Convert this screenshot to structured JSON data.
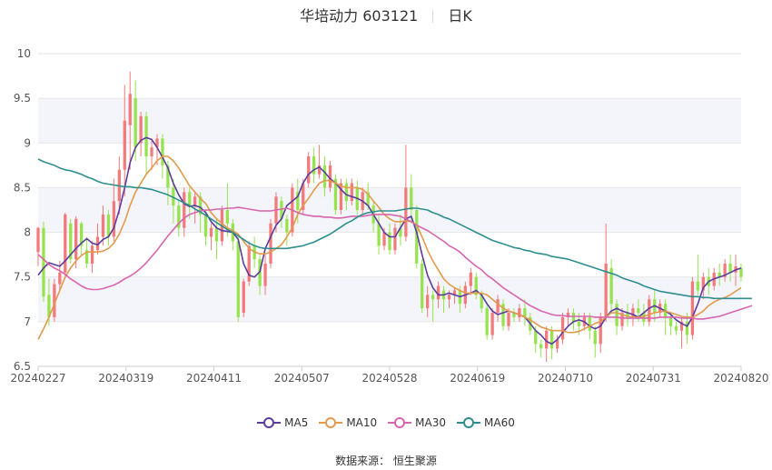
{
  "title": {
    "stock": "华培动力 603121",
    "period": "日K"
  },
  "source": "数据来源： 恒生聚源",
  "chart_data": {
    "type": "candlestick",
    "ylim": [
      6.5,
      10
    ],
    "yticks": [
      "6.5",
      "7",
      "7.5",
      "8",
      "8.5",
      "9",
      "9.5",
      "10"
    ],
    "xticks": [
      "20240227",
      "20240319",
      "20240411",
      "20240507",
      "20240528",
      "20240619",
      "20240710",
      "20240731",
      "20240820"
    ],
    "colors": {
      "up": "#f27a7a",
      "down": "#96e34e"
    },
    "legend": [
      {
        "name": "MA5",
        "color": "#5b3d9b"
      },
      {
        "name": "MA10",
        "color": "#e29a4d"
      },
      {
        "name": "MA30",
        "color": "#d865ad"
      },
      {
        "name": "MA60",
        "color": "#2f8e8e"
      }
    ],
    "candles": [
      [
        7.78,
        8.05,
        8.06,
        7.62
      ],
      [
        8.05,
        7.28,
        8.12,
        7.22
      ],
      [
        7.3,
        7.05,
        7.48,
        6.95
      ],
      [
        7.05,
        7.42,
        7.48,
        7.0
      ],
      [
        7.42,
        7.55,
        7.68,
        7.35
      ],
      [
        7.55,
        8.2,
        8.22,
        7.5
      ],
      [
        8.1,
        7.7,
        8.15,
        7.65
      ],
      [
        7.7,
        8.15,
        8.18,
        7.6
      ],
      [
        8.1,
        7.85,
        8.12,
        7.75
      ],
      [
        7.8,
        7.65,
        7.95,
        7.6
      ],
      [
        7.65,
        7.85,
        7.9,
        7.55
      ],
      [
        7.8,
        7.95,
        8.1,
        7.75
      ],
      [
        7.95,
        8.2,
        8.3,
        7.85
      ],
      [
        8.2,
        7.95,
        8.25,
        7.85
      ],
      [
        7.95,
        8.35,
        8.6,
        7.9
      ],
      [
        8.35,
        8.7,
        8.85,
        8.2
      ],
      [
        8.7,
        9.25,
        9.65,
        8.4
      ],
      [
        9.2,
        9.55,
        9.8,
        8.7
      ],
      [
        9.5,
        8.95,
        9.7,
        8.8
      ],
      [
        9.0,
        9.3,
        9.35,
        8.85
      ],
      [
        9.3,
        8.85,
        9.35,
        8.65
      ],
      [
        8.85,
        8.95,
        9.05,
        8.7
      ],
      [
        8.95,
        9.05,
        9.1,
        8.75
      ],
      [
        9.05,
        8.75,
        9.1,
        8.6
      ],
      [
        8.75,
        8.5,
        8.8,
        8.3
      ],
      [
        8.5,
        8.3,
        8.6,
        8.1
      ],
      [
        8.3,
        8.05,
        8.35,
        7.95
      ],
      [
        8.05,
        8.45,
        8.5,
        7.95
      ],
      [
        8.45,
        8.3,
        8.5,
        8.15
      ],
      [
        8.3,
        8.4,
        8.45,
        8.1
      ],
      [
        8.4,
        8.2,
        8.45,
        8.0
      ],
      [
        8.2,
        7.95,
        8.25,
        7.85
      ],
      [
        7.95,
        8.05,
        8.1,
        7.8
      ],
      [
        8.05,
        7.9,
        8.15,
        7.7
      ],
      [
        7.9,
        8.25,
        8.3,
        7.85
      ],
      [
        8.25,
        8.1,
        8.55,
        7.95
      ],
      [
        8.1,
        7.9,
        8.15,
        7.8
      ],
      [
        7.9,
        7.05,
        7.95,
        7.0
      ],
      [
        7.1,
        7.45,
        7.48,
        7.05
      ],
      [
        7.45,
        7.85,
        7.9,
        7.4
      ],
      [
        7.85,
        7.7,
        7.95,
        7.6
      ],
      [
        7.7,
        7.4,
        7.75,
        7.3
      ],
      [
        7.4,
        7.65,
        7.75,
        7.3
      ],
      [
        7.65,
        8.1,
        8.15,
        7.6
      ],
      [
        8.1,
        8.4,
        8.45,
        8.0
      ],
      [
        8.35,
        8.15,
        8.4,
        8.05
      ],
      [
        8.15,
        8.0,
        8.2,
        7.85
      ],
      [
        8.0,
        8.5,
        8.55,
        7.95
      ],
      [
        8.45,
        8.25,
        8.6,
        8.1
      ],
      [
        8.25,
        8.55,
        8.6,
        8.2
      ],
      [
        8.55,
        8.85,
        8.9,
        8.5
      ],
      [
        8.85,
        8.65,
        8.95,
        8.55
      ],
      [
        8.65,
        8.75,
        8.98,
        8.6
      ],
      [
        8.75,
        8.5,
        8.85,
        8.4
      ],
      [
        8.5,
        8.75,
        8.8,
        8.45
      ],
      [
        8.6,
        8.25,
        8.65,
        8.2
      ],
      [
        8.25,
        8.55,
        8.6,
        8.2
      ],
      [
        8.55,
        8.35,
        8.6,
        8.25
      ],
      [
        8.35,
        8.55,
        8.6,
        8.3
      ],
      [
        8.5,
        8.25,
        8.58,
        8.2
      ],
      [
        8.25,
        8.45,
        8.5,
        8.2
      ],
      [
        8.45,
        8.3,
        8.55,
        8.25
      ],
      [
        8.3,
        8.1,
        8.35,
        8.0
      ],
      [
        8.1,
        7.85,
        8.2,
        7.75
      ],
      [
        7.85,
        8.0,
        8.05,
        7.8
      ],
      [
        8.0,
        7.8,
        8.1,
        7.75
      ],
      [
        7.8,
        8.05,
        8.1,
        7.75
      ],
      [
        8.05,
        7.95,
        8.2,
        7.85
      ],
      [
        7.95,
        8.5,
        8.98,
        7.9
      ],
      [
        8.5,
        8.25,
        8.65,
        8.1
      ],
      [
        8.25,
        7.65,
        8.3,
        7.6
      ],
      [
        7.65,
        7.15,
        7.7,
        7.1
      ],
      [
        7.15,
        7.3,
        7.4,
        7.05
      ],
      [
        7.3,
        7.25,
        7.35,
        7.0
      ],
      [
        7.25,
        7.4,
        7.45,
        7.15
      ],
      [
        7.35,
        7.25,
        7.4,
        7.1
      ],
      [
        7.25,
        7.3,
        7.35,
        7.15
      ],
      [
        7.3,
        7.35,
        7.38,
        7.2
      ],
      [
        7.35,
        7.2,
        7.4,
        7.1
      ],
      [
        7.2,
        7.4,
        7.45,
        7.15
      ],
      [
        7.4,
        7.55,
        7.6,
        7.3
      ],
      [
        7.5,
        7.3,
        7.55,
        7.25
      ],
      [
        7.3,
        7.15,
        7.35,
        7.1
      ],
      [
        7.15,
        6.85,
        7.2,
        6.8
      ],
      [
        6.85,
        7.1,
        7.15,
        6.8
      ],
      [
        7.1,
        7.25,
        7.3,
        7.0
      ],
      [
        7.2,
        6.95,
        7.25,
        6.9
      ],
      [
        6.95,
        7.1,
        7.15,
        6.9
      ],
      [
        7.1,
        7.05,
        7.15,
        7.0
      ],
      [
        7.05,
        7.15,
        7.2,
        7.0
      ],
      [
        7.15,
        7.05,
        7.25,
        6.95
      ],
      [
        7.05,
        6.9,
        7.1,
        6.85
      ],
      [
        6.9,
        6.75,
        6.95,
        6.65
      ],
      [
        6.75,
        6.7,
        6.8,
        6.6
      ],
      [
        6.7,
        6.9,
        6.95,
        6.55
      ],
      [
        6.9,
        6.7,
        6.95,
        6.58
      ],
      [
        6.7,
        6.8,
        6.85,
        6.65
      ],
      [
        6.8,
        7.05,
        7.1,
        6.75
      ],
      [
        7.05,
        7.1,
        7.15,
        6.95
      ],
      [
        7.1,
        7.0,
        7.15,
        6.9
      ],
      [
        7.0,
        6.95,
        7.1,
        6.85
      ],
      [
        6.95,
        7.05,
        7.1,
        6.9
      ],
      [
        7.05,
        6.9,
        7.1,
        6.8
      ],
      [
        6.9,
        6.75,
        6.95,
        6.6
      ],
      [
        6.75,
        7.05,
        7.1,
        6.65
      ],
      [
        7.05,
        7.65,
        8.1,
        7.0
      ],
      [
        7.6,
        7.2,
        7.7,
        7.1
      ],
      [
        7.2,
        6.95,
        7.25,
        6.85
      ],
      [
        6.95,
        7.1,
        7.15,
        6.9
      ],
      [
        7.1,
        7.05,
        7.2,
        6.95
      ],
      [
        7.05,
        7.15,
        7.2,
        6.95
      ],
      [
        7.15,
        7.1,
        7.25,
        7.0
      ],
      [
        7.1,
        7.0,
        7.2,
        6.95
      ],
      [
        7.0,
        7.25,
        7.3,
        6.95
      ],
      [
        7.25,
        7.1,
        7.35,
        7.0
      ],
      [
        7.1,
        7.2,
        7.25,
        7.05
      ],
      [
        7.2,
        7.05,
        7.25,
        6.85
      ],
      [
        7.05,
        6.95,
        7.1,
        6.85
      ],
      [
        6.95,
        6.9,
        7.0,
        6.85
      ],
      [
        6.9,
        7.0,
        7.05,
        6.7
      ],
      [
        7.0,
        6.85,
        7.1,
        6.75
      ],
      [
        6.85,
        7.45,
        7.5,
        6.8
      ],
      [
        7.45,
        7.35,
        7.75,
        7.3
      ],
      [
        7.35,
        7.5,
        7.55,
        7.25
      ],
      [
        7.5,
        7.4,
        7.6,
        7.3
      ],
      [
        7.4,
        7.55,
        7.6,
        7.35
      ],
      [
        7.55,
        7.5,
        7.65,
        7.4
      ],
      [
        7.5,
        7.65,
        7.7,
        7.45
      ],
      [
        7.65,
        7.55,
        7.75,
        7.45
      ],
      [
        7.55,
        7.62,
        7.75,
        7.4
      ],
      [
        7.6,
        7.5,
        7.65,
        7.45
      ]
    ],
    "ma5": [
      7.52,
      7.6,
      7.66,
      7.64,
      7.62,
      7.68,
      7.75,
      7.82,
      7.88,
      7.93,
      7.88,
      7.86,
      7.92,
      7.95,
      8.05,
      8.25,
      8.5,
      8.78,
      8.95,
      9.03,
      9.06,
      9.04,
      8.95,
      8.84,
      8.72,
      8.55,
      8.42,
      8.32,
      8.29,
      8.3,
      8.28,
      8.22,
      8.12,
      8.05,
      8.02,
      8.01,
      8.0,
      7.92,
      7.65,
      7.52,
      7.5,
      7.56,
      7.82,
      7.95,
      8.08,
      8.15,
      8.3,
      8.35,
      8.4,
      8.55,
      8.65,
      8.7,
      8.73,
      8.67,
      8.6,
      8.55,
      8.48,
      8.42,
      8.4,
      8.38,
      8.35,
      8.3,
      8.2,
      8.1,
      8.0,
      7.95,
      7.95,
      8.05,
      8.15,
      8.18,
      8.0,
      7.75,
      7.52,
      7.38,
      7.3,
      7.3,
      7.32,
      7.3,
      7.28,
      7.3,
      7.32,
      7.35,
      7.3,
      7.2,
      7.12,
      7.08,
      7.1,
      7.12,
      7.1,
      7.08,
      7.05,
      6.98,
      6.9,
      6.85,
      6.78,
      6.75,
      6.8,
      6.88,
      6.95,
      7.0,
      7.02,
      7.0,
      6.95,
      6.92,
      6.95,
      7.05,
      7.12,
      7.15,
      7.12,
      7.1,
      7.08,
      7.05,
      7.1,
      7.15,
      7.18,
      7.15,
      7.12,
      7.08,
      7.02,
      6.98,
      6.95,
      7.05,
      7.2,
      7.38,
      7.45,
      7.48,
      7.5,
      7.52,
      7.55,
      7.58,
      7.6
    ],
    "ma10": [
      6.8,
      6.92,
      7.05,
      7.2,
      7.35,
      7.5,
      7.6,
      7.68,
      7.74,
      7.78,
      7.78,
      7.78,
      7.79,
      7.82,
      7.88,
      7.98,
      8.12,
      8.3,
      8.45,
      8.55,
      8.65,
      8.72,
      8.8,
      8.85,
      8.85,
      8.8,
      8.72,
      8.62,
      8.52,
      8.45,
      8.38,
      8.32,
      8.22,
      8.15,
      8.1,
      8.05,
      8.02,
      7.98,
      7.9,
      7.82,
      7.78,
      7.76,
      7.76,
      7.78,
      7.82,
      7.86,
      7.95,
      8.05,
      8.2,
      8.3,
      8.38,
      8.47,
      8.55,
      8.58,
      8.58,
      8.55,
      8.52,
      8.5,
      8.5,
      8.5,
      8.48,
      8.43,
      8.35,
      8.28,
      8.2,
      8.15,
      8.12,
      8.12,
      8.13,
      8.12,
      8.08,
      7.95,
      7.8,
      7.68,
      7.58,
      7.48,
      7.42,
      7.38,
      7.35,
      7.32,
      7.32,
      7.32,
      7.32,
      7.3,
      7.25,
      7.2,
      7.15,
      7.12,
      7.1,
      7.08,
      7.05,
      7.02,
      6.98,
      6.94,
      6.92,
      6.9,
      6.9,
      6.9,
      6.88,
      6.88,
      6.89,
      6.92,
      6.95,
      6.98,
      7.0,
      7.05,
      7.1,
      7.1,
      7.08,
      7.06,
      7.05,
      7.05,
      7.06,
      7.08,
      7.1,
      7.11,
      7.12,
      7.1,
      7.08,
      7.06,
      7.05,
      7.05,
      7.08,
      7.12,
      7.18,
      7.22,
      7.25,
      7.27,
      7.3,
      7.34,
      7.38
    ],
    "ma30": [
      7.75,
      7.7,
      7.64,
      7.6,
      7.57,
      7.53,
      7.48,
      7.44,
      7.4,
      7.37,
      7.36,
      7.36,
      7.37,
      7.39,
      7.41,
      7.44,
      7.48,
      7.51,
      7.55,
      7.6,
      7.66,
      7.73,
      7.8,
      7.88,
      7.96,
      8.03,
      8.1,
      8.16,
      8.2,
      8.22,
      8.24,
      8.25,
      8.25,
      8.26,
      8.26,
      8.27,
      8.27,
      8.28,
      8.27,
      8.26,
      8.25,
      8.24,
      8.24,
      8.24,
      8.25,
      8.26,
      8.27,
      8.25,
      8.22,
      8.2,
      8.19,
      8.18,
      8.18,
      8.17,
      8.17,
      8.16,
      8.16,
      8.17,
      8.18,
      8.18,
      8.18,
      8.19,
      8.2,
      8.2,
      8.2,
      8.2,
      8.19,
      8.18,
      8.15,
      8.12,
      8.08,
      8.05,
      8.02,
      7.98,
      7.94,
      7.9,
      7.85,
      7.82,
      7.78,
      7.72,
      7.67,
      7.62,
      7.58,
      7.52,
      7.48,
      7.43,
      7.38,
      7.34,
      7.3,
      7.26,
      7.22,
      7.18,
      7.15,
      7.12,
      7.1,
      7.08,
      7.07,
      7.07,
      7.06,
      7.06,
      7.06,
      7.06,
      7.06,
      7.05,
      7.05,
      7.05,
      7.05,
      7.05,
      7.04,
      7.04,
      7.04,
      7.04,
      7.04,
      7.04,
      7.04,
      7.05,
      7.05,
      7.05,
      7.05,
      7.04,
      7.04,
      7.04,
      7.03,
      7.03,
      7.04,
      7.05,
      7.06,
      7.08,
      7.1,
      7.12,
      7.14,
      7.16,
      7.18
    ],
    "ma60": [
      8.82,
      8.79,
      8.77,
      8.75,
      8.72,
      8.7,
      8.69,
      8.67,
      8.65,
      8.62,
      8.6,
      8.57,
      8.55,
      8.54,
      8.53,
      8.52,
      8.51,
      8.51,
      8.5,
      8.5,
      8.49,
      8.48,
      8.46,
      8.44,
      8.42,
      8.39,
      8.36,
      8.33,
      8.3,
      8.26,
      8.23,
      8.19,
      8.15,
      8.11,
      8.07,
      8.03,
      8.0,
      7.96,
      7.92,
      7.88,
      7.85,
      7.83,
      7.82,
      7.82,
      7.82,
      7.82,
      7.82,
      7.83,
      7.84,
      7.85,
      7.87,
      7.89,
      7.92,
      7.95,
      7.98,
      8.02,
      8.06,
      8.1,
      8.13,
      8.17,
      8.2,
      8.22,
      8.23,
      8.24,
      8.24,
      8.24,
      8.24,
      8.25,
      8.26,
      8.27,
      8.27,
      8.26,
      8.25,
      8.22,
      8.2,
      8.17,
      8.15,
      8.12,
      8.09,
      8.06,
      8.03,
      8.0,
      7.97,
      7.94,
      7.91,
      7.89,
      7.87,
      7.85,
      7.83,
      7.82,
      7.8,
      7.79,
      7.77,
      7.76,
      7.75,
      7.73,
      7.72,
      7.71,
      7.7,
      7.68,
      7.66,
      7.64,
      7.62,
      7.6,
      7.58,
      7.56,
      7.54,
      7.52,
      7.49,
      7.47,
      7.45,
      7.43,
      7.4,
      7.38,
      7.36,
      7.34,
      7.33,
      7.32,
      7.31,
      7.3,
      7.29,
      7.28,
      7.28,
      7.27,
      7.27,
      7.26,
      7.26,
      7.26,
      7.26,
      7.26,
      7.26,
      7.26,
      7.26
    ]
  }
}
